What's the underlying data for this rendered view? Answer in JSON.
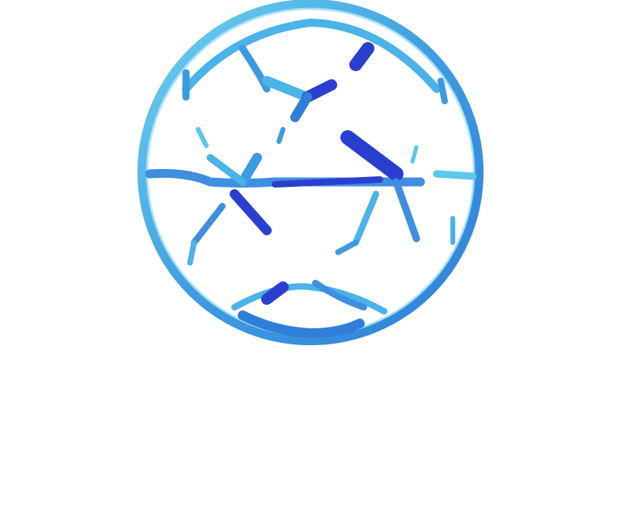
{
  "logo": {
    "icon": "globe-network-icon",
    "colors": {
      "light": "#5bc8ec",
      "mid": "#2f7fd9",
      "dark": "#2a3fd0",
      "background": "#ffffff"
    }
  }
}
